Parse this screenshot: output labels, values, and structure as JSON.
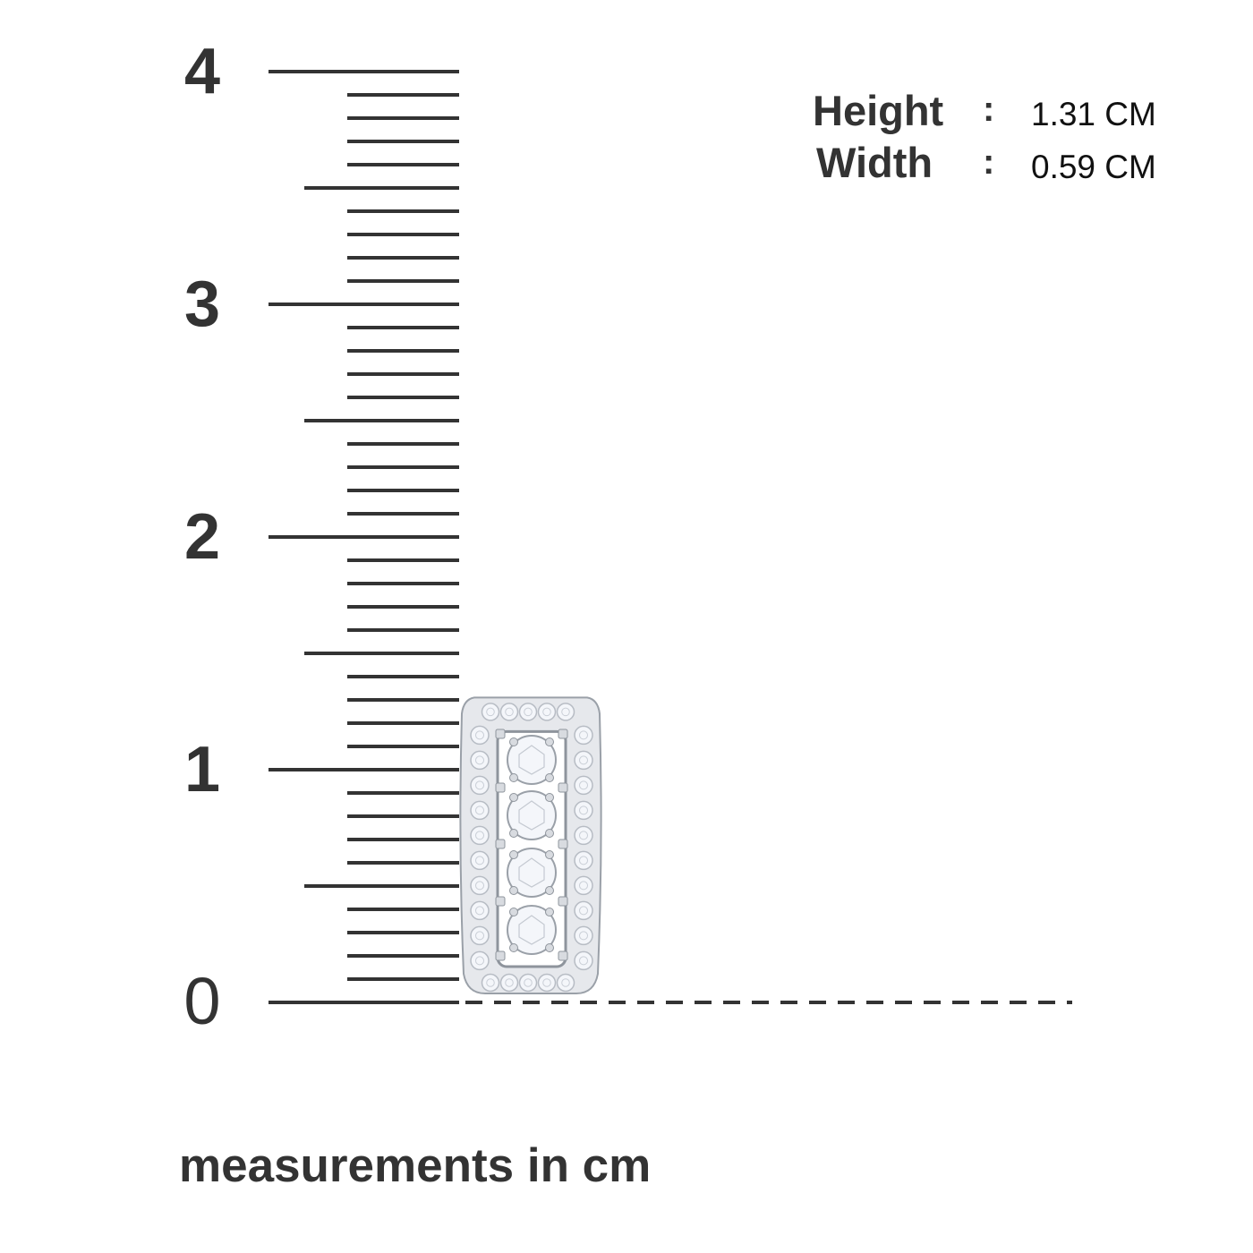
{
  "ruler": {
    "unit": "cm",
    "min": 0,
    "max": 4,
    "minor_step": 0.1,
    "labels": [
      "0",
      "1",
      "2",
      "3",
      "4"
    ],
    "baseline_style": "dashed"
  },
  "dimensions": {
    "height": {
      "label": "Height",
      "separator": ":",
      "value": "1.31 CM"
    },
    "width": {
      "label": "Width",
      "separator": ":",
      "value": "0.59 CM"
    }
  },
  "caption": "measurements in cm",
  "product": {
    "type": "pendant",
    "metal": "white gold",
    "stones": "diamonds",
    "height_cm": 1.31,
    "width_cm": 0.59
  },
  "colors": {
    "ink": "#333333",
    "metal": "#e6e8ec",
    "stone": "#f4f6fa"
  }
}
